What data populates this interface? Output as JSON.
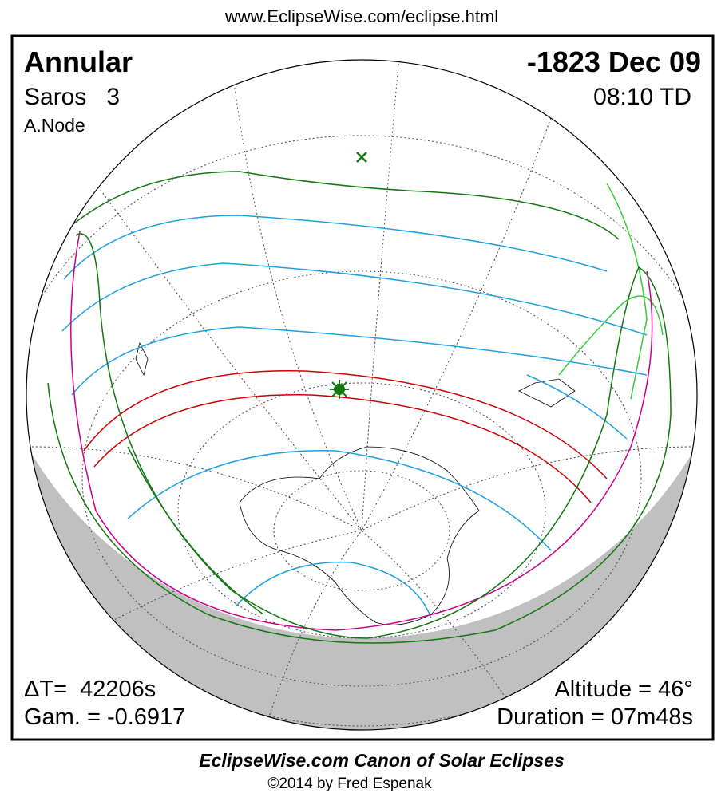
{
  "header": {
    "url": "www.EclipseWise.com/eclipse.html"
  },
  "eclipse": {
    "type": "Annular",
    "date": "-1823 Dec 09",
    "saros": "Saros   3",
    "time": "08:10 TD",
    "node": "A.Node",
    "delta_t": "ΔT=  42206s",
    "gamma": "Gam. = -0.6917",
    "altitude": "Altitude = 46°",
    "duration": "Duration = 07m48s"
  },
  "footer": {
    "title": "EclipseWise.com Canon of Solar Eclipses",
    "credit": "©2014 by Fred Espenak"
  }
}
